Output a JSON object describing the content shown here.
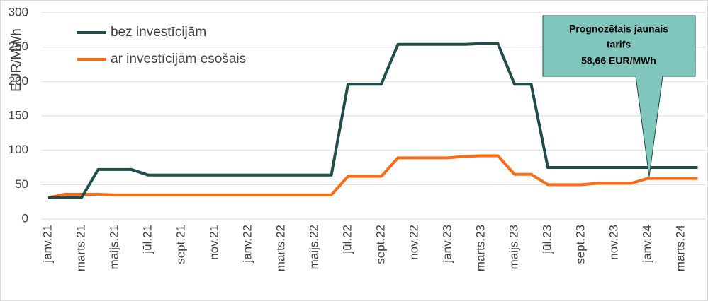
{
  "chart_data": {
    "type": "line",
    "y_label": "EUR/MWh",
    "categories": [
      "janv.21",
      null,
      "marts.21",
      null,
      "maijs.21",
      null,
      "jūl.21",
      null,
      "sept.21",
      null,
      "nov.21",
      null,
      "janv.22",
      null,
      "marts.22",
      null,
      "maijs.22",
      null,
      "jūl.22",
      null,
      "sept.22",
      null,
      "nov.22",
      null,
      "janv.23",
      null,
      "marts.23",
      null,
      "maijs.23",
      null,
      "jūl.23",
      null,
      "sept.23",
      null,
      "nov.23",
      null,
      "janv.24",
      null,
      "marts.24",
      null
    ],
    "series": [
      {
        "name": "bez investīcijām",
        "color": "#1e4d4b",
        "values": [
          31,
          31,
          31,
          72,
          72,
          72,
          64,
          64,
          64,
          64,
          64,
          64,
          64,
          64,
          64,
          64,
          64,
          64,
          196,
          196,
          196,
          254,
          254,
          254,
          254,
          254,
          255,
          255,
          196,
          196,
          75,
          75,
          75,
          75,
          75,
          75,
          75,
          75,
          75,
          75
        ]
      },
      {
        "name": "ar investīcijām esošais",
        "color": "#ff6a13",
        "values": [
          31,
          36,
          36,
          36,
          35,
          35,
          35,
          35,
          35,
          35,
          35,
          35,
          35,
          35,
          35,
          35,
          35,
          35,
          62,
          62,
          62,
          89,
          89,
          89,
          89,
          91,
          92,
          92,
          65,
          65,
          50,
          50,
          50,
          52,
          52,
          52,
          59,
          59,
          59,
          59
        ]
      }
    ],
    "ylim": [
      0,
      300
    ],
    "yticks": [
      0,
      50,
      100,
      150,
      200,
      250,
      300
    ],
    "grid": true,
    "legend": "upper-left",
    "annotation": [
      "Prognozētais jaunais",
      "tarifs",
      "58,66 EUR/MWh"
    ]
  }
}
